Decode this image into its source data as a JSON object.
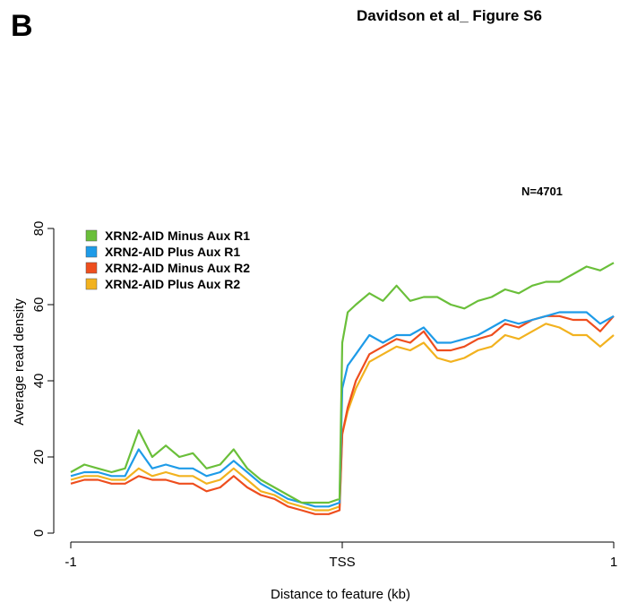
{
  "panel_label": "B",
  "figure_title": "Davidson et al_ Figure S6",
  "chart_data": {
    "type": "line",
    "annotation": "N=4701",
    "xlabel": "Distance to feature (kb)",
    "ylabel": "Average read density",
    "xlim": [
      -1,
      1
    ],
    "ylim": [
      0,
      80
    ],
    "xticks": [
      {
        "value": -1,
        "label": "-1"
      },
      {
        "value": 0,
        "label": "TSS"
      },
      {
        "value": 1,
        "label": "1"
      }
    ],
    "yticks": [
      0,
      20,
      40,
      60,
      80
    ],
    "grid": false,
    "legend_position": "top-left",
    "x": [
      -1.0,
      -0.95,
      -0.9,
      -0.85,
      -0.8,
      -0.75,
      -0.7,
      -0.65,
      -0.6,
      -0.55,
      -0.5,
      -0.45,
      -0.4,
      -0.35,
      -0.3,
      -0.25,
      -0.2,
      -0.15,
      -0.1,
      -0.05,
      -0.01,
      0.0,
      0.02,
      0.05,
      0.1,
      0.15,
      0.2,
      0.25,
      0.3,
      0.35,
      0.4,
      0.45,
      0.5,
      0.55,
      0.6,
      0.65,
      0.7,
      0.75,
      0.8,
      0.85,
      0.9,
      0.95,
      1.0
    ],
    "series": [
      {
        "name": "XRN2-AID Minus Aux R1",
        "color": "#6abf3a",
        "values": [
          16,
          18,
          17,
          16,
          17,
          27,
          20,
          23,
          20,
          21,
          17,
          18,
          22,
          17,
          14,
          12,
          10,
          8,
          8,
          8,
          9,
          50,
          58,
          60,
          63,
          61,
          65,
          61,
          62,
          62,
          60,
          59,
          61,
          62,
          64,
          63,
          65,
          66,
          66,
          68,
          70,
          69,
          71
        ]
      },
      {
        "name": "XRN2-AID Plus Aux R1",
        "color": "#1e9be8",
        "values": [
          15,
          16,
          16,
          15,
          15,
          22,
          17,
          18,
          17,
          17,
          15,
          16,
          19,
          16,
          13,
          11,
          9,
          8,
          7,
          7,
          8,
          38,
          44,
          47,
          52,
          50,
          52,
          52,
          54,
          50,
          50,
          51,
          52,
          54,
          56,
          55,
          56,
          57,
          58,
          58,
          58,
          55,
          57
        ]
      },
      {
        "name": "XRN2-AID Minus Aux R2",
        "color": "#ee4e1e",
        "values": [
          13,
          14,
          14,
          13,
          13,
          15,
          14,
          14,
          13,
          13,
          11,
          12,
          15,
          12,
          10,
          9,
          7,
          6,
          5,
          5,
          6,
          26,
          33,
          40,
          47,
          49,
          51,
          50,
          53,
          48,
          48,
          49,
          51,
          52,
          55,
          54,
          56,
          57,
          57,
          56,
          56,
          53,
          57
        ]
      },
      {
        "name": "XRN2-AID Plus Aux R2",
        "color": "#f2b21f",
        "values": [
          14,
          15,
          15,
          14,
          14,
          17,
          15,
          16,
          15,
          15,
          13,
          14,
          17,
          14,
          11,
          10,
          8,
          7,
          6,
          6,
          7,
          26,
          32,
          38,
          45,
          47,
          49,
          48,
          50,
          46,
          45,
          46,
          48,
          49,
          52,
          51,
          53,
          55,
          54,
          52,
          52,
          49,
          52
        ]
      }
    ]
  }
}
